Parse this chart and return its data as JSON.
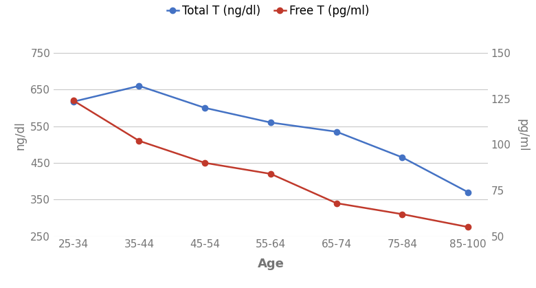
{
  "categories": [
    "25-34",
    "35-44",
    "45-54",
    "55-64",
    "65-74",
    "75-84",
    "85-100"
  ],
  "total_t": [
    617,
    660,
    600,
    560,
    535,
    465,
    370
  ],
  "free_t": [
    124,
    102,
    90,
    84,
    68,
    62,
    55
  ],
  "total_t_color": "#4472C4",
  "free_t_color": "#C0392B",
  "left_ylim": [
    250,
    800
  ],
  "left_yticks": [
    250,
    350,
    450,
    550,
    650,
    750
  ],
  "right_ylim": [
    50,
    160
  ],
  "right_yticks": [
    50,
    75,
    100,
    125,
    150
  ],
  "left_ylabel": "ng/dl",
  "right_ylabel": "pg/ml",
  "xlabel": "Age",
  "legend_total": "Total T (ng/dl)",
  "legend_free": "Free T (pg/ml)",
  "background_color": "#ffffff",
  "grid_color": "#c8c8c8",
  "marker_size": 6,
  "line_width": 1.8,
  "font_color": "#757575",
  "tick_fontsize": 11,
  "label_fontsize": 12,
  "xlabel_fontsize": 13
}
